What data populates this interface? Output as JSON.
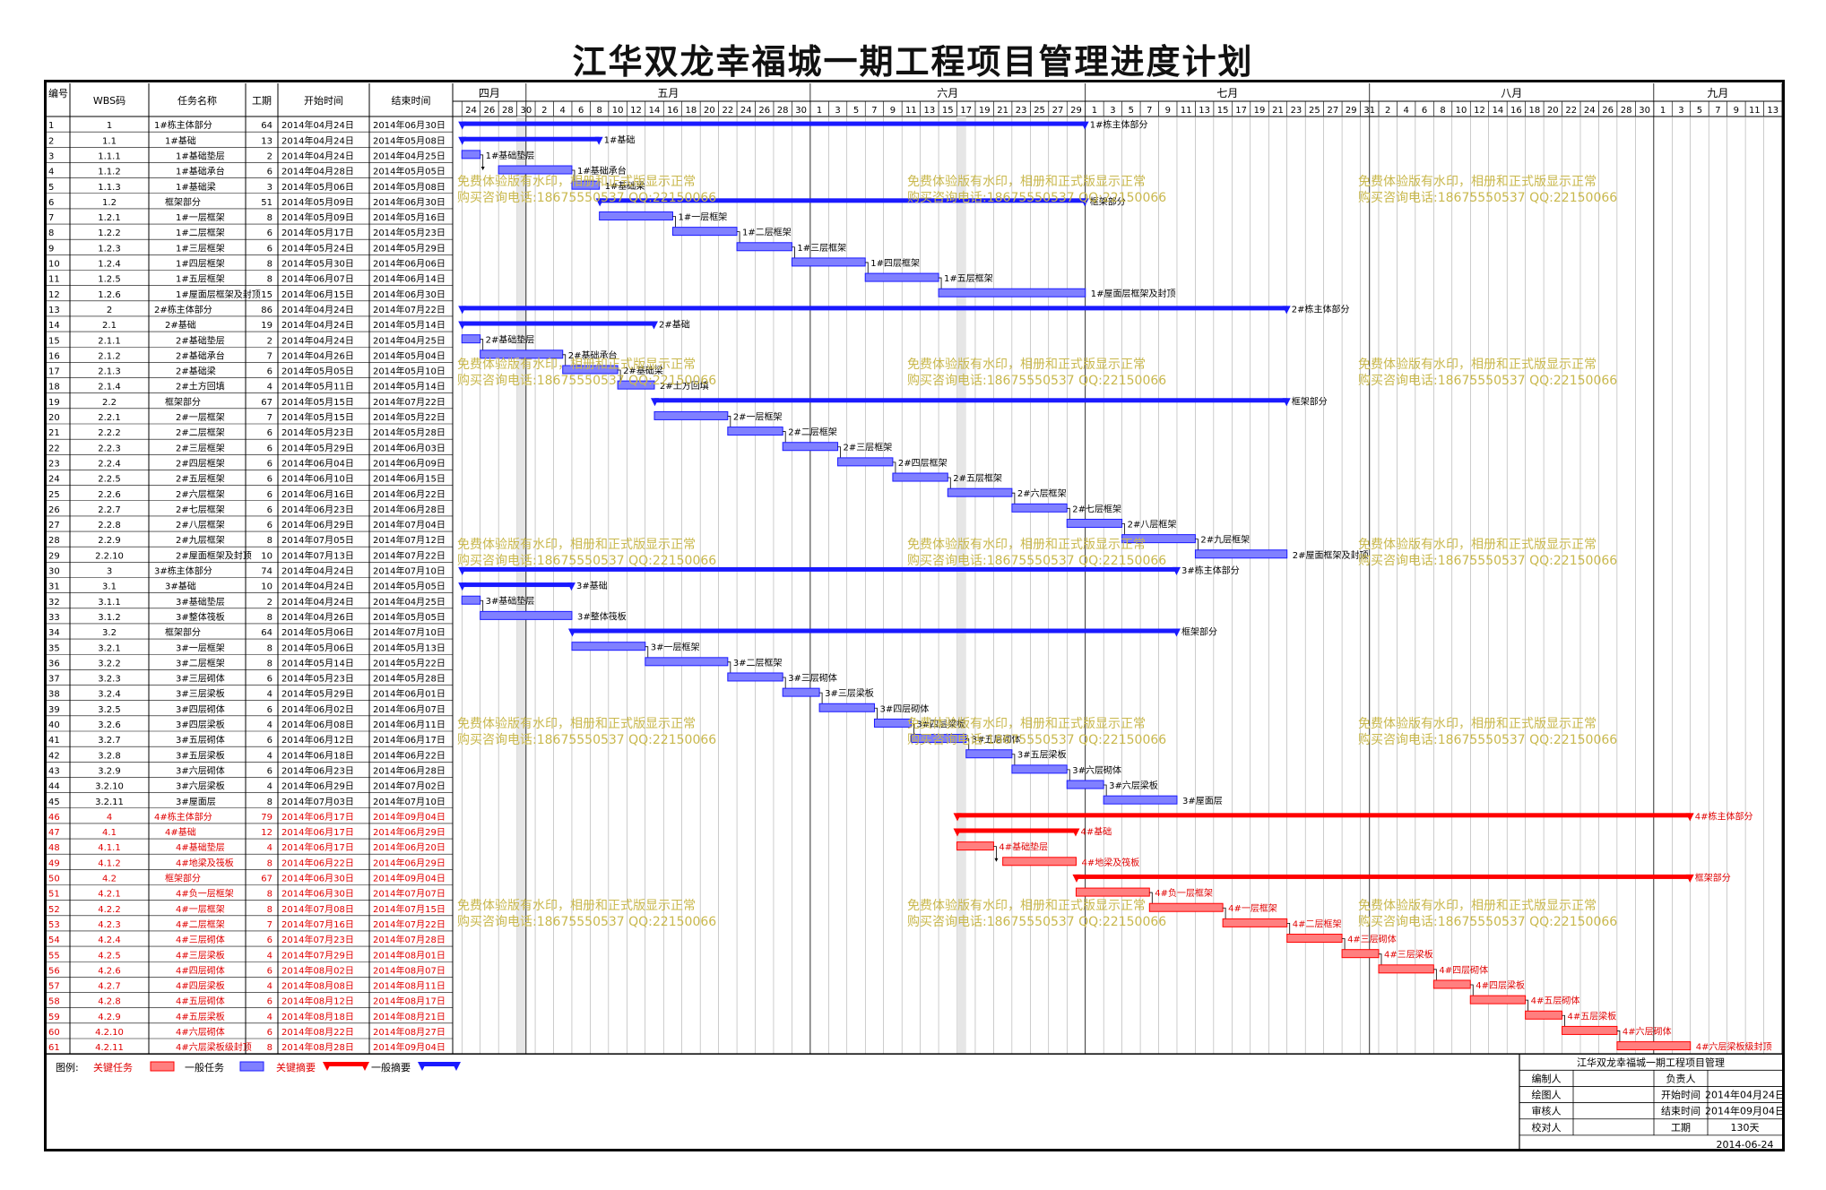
{
  "title": "江华双龙幸福城一期工程项目管理进度计划",
  "columns": [
    "编号",
    "WBS码",
    "任务名称",
    "工期",
    "开始时间",
    "结束时间"
  ],
  "months": [
    {
      "label": "四月",
      "start": "2014-04-23",
      "end": "2014-05-01"
    },
    {
      "label": "五月",
      "start": "2014-05-01",
      "end": "2014-06-01"
    },
    {
      "label": "六月",
      "start": "2014-06-01",
      "end": "2014-07-01"
    },
    {
      "label": "七月",
      "start": "2014-07-01",
      "end": "2014-08-01"
    },
    {
      "label": "八月",
      "start": "2014-08-01",
      "end": "2014-09-01"
    },
    {
      "label": "九月",
      "start": "2014-09-01",
      "end": "2014-09-15"
    }
  ],
  "timeline_start": "2014-04-23",
  "timeline_end": "2014-09-15",
  "day_labels": [
    "24",
    "26",
    "28",
    "30",
    "2",
    "4",
    "6",
    "8",
    "10",
    "12",
    "14",
    "16",
    "18",
    "20",
    "22",
    "24",
    "26",
    "28",
    "30",
    "1",
    "3",
    "5",
    "7",
    "9",
    "11",
    "13",
    "15",
    "17",
    "19",
    "21",
    "23",
    "25",
    "27",
    "29",
    "1",
    "3",
    "5",
    "7",
    "9",
    "11",
    "13",
    "15",
    "17",
    "19",
    "21",
    "23",
    "25",
    "27",
    "29",
    "31",
    "2",
    "4",
    "6",
    "8",
    "10",
    "12",
    "14",
    "16",
    "18",
    "20",
    "22",
    "24",
    "26",
    "28",
    "30",
    "1",
    "3",
    "5",
    "7",
    "9",
    "11",
    "13"
  ],
  "tasks": [
    {
      "id": "1",
      "wbs": "1",
      "name": "1#栋主体部分",
      "dur": "64",
      "start": "2014年04月24日",
      "end": "2014年06月30日",
      "type": "summary",
      "bar_label": "1#栋主体部分",
      "indent": 0
    },
    {
      "id": "2",
      "wbs": "1.1",
      "name": "1#基础",
      "dur": "13",
      "start": "2014年04月24日",
      "end": "2014年05月08日",
      "type": "summary",
      "bar_label": "1#基础",
      "indent": 1
    },
    {
      "id": "3",
      "wbs": "1.1.1",
      "name": "1#基础垫层",
      "dur": "2",
      "start": "2014年04月24日",
      "end": "2014年04月25日",
      "type": "task",
      "bar_label": "1#基础垫层",
      "indent": 2
    },
    {
      "id": "4",
      "wbs": "1.1.2",
      "name": "1#基础承台",
      "dur": "6",
      "start": "2014年04月28日",
      "end": "2014年05月05日",
      "type": "task",
      "bar_label": "1#基础承台",
      "indent": 2
    },
    {
      "id": "5",
      "wbs": "1.1.3",
      "name": "1#基础梁",
      "dur": "3",
      "start": "2014年05月06日",
      "end": "2014年05月08日",
      "type": "task",
      "bar_label": "1#基础梁",
      "indent": 2
    },
    {
      "id": "6",
      "wbs": "1.2",
      "name": "框架部分",
      "dur": "51",
      "start": "2014年05月09日",
      "end": "2014年06月30日",
      "type": "summary",
      "bar_label": "框架部分",
      "indent": 1
    },
    {
      "id": "7",
      "wbs": "1.2.1",
      "name": "1#一层框架",
      "dur": "8",
      "start": "2014年05月09日",
      "end": "2014年05月16日",
      "type": "task",
      "bar_label": "1#一层框架",
      "indent": 2
    },
    {
      "id": "8",
      "wbs": "1.2.2",
      "name": "1#二层框架",
      "dur": "6",
      "start": "2014年05月17日",
      "end": "2014年05月23日",
      "type": "task",
      "bar_label": "1#二层框架",
      "indent": 2
    },
    {
      "id": "9",
      "wbs": "1.2.3",
      "name": "1#三层框架",
      "dur": "6",
      "start": "2014年05月24日",
      "end": "2014年05月29日",
      "type": "task",
      "bar_label": "1#三层框架",
      "indent": 2
    },
    {
      "id": "10",
      "wbs": "1.2.4",
      "name": "1#四层框架",
      "dur": "8",
      "start": "2014年05月30日",
      "end": "2014年06月06日",
      "type": "task",
      "bar_label": "1#四层框架",
      "indent": 2
    },
    {
      "id": "11",
      "wbs": "1.2.5",
      "name": "1#五层框架",
      "dur": "8",
      "start": "2014年06月07日",
      "end": "2014年06月14日",
      "type": "task",
      "bar_label": "1#五层框架",
      "indent": 2
    },
    {
      "id": "12",
      "wbs": "1.2.6",
      "name": "1#屋面层框架及封顶",
      "dur": "15",
      "start": "2014年06月15日",
      "end": "2014年06月30日",
      "type": "task",
      "bar_label": "1#屋面层框架及封顶",
      "indent": 2
    },
    {
      "id": "13",
      "wbs": "2",
      "name": "2#栋主体部分",
      "dur": "86",
      "start": "2014年04月24日",
      "end": "2014年07月22日",
      "type": "summary",
      "bar_label": "2#栋主体部分",
      "indent": 0
    },
    {
      "id": "14",
      "wbs": "2.1",
      "name": "2#基础",
      "dur": "19",
      "start": "2014年04月24日",
      "end": "2014年05月14日",
      "type": "summary",
      "bar_label": "2#基础",
      "indent": 1
    },
    {
      "id": "15",
      "wbs": "2.1.1",
      "name": "2#基础垫层",
      "dur": "2",
      "start": "2014年04月24日",
      "end": "2014年04月25日",
      "type": "task",
      "bar_label": "2#基础垫层",
      "indent": 2
    },
    {
      "id": "16",
      "wbs": "2.1.2",
      "name": "2#基础承台",
      "dur": "7",
      "start": "2014年04月26日",
      "end": "2014年05月04日",
      "type": "task",
      "bar_label": "2#基础承台",
      "indent": 2
    },
    {
      "id": "17",
      "wbs": "2.1.3",
      "name": "2#基础梁",
      "dur": "6",
      "start": "2014年05月05日",
      "end": "2014年05月10日",
      "type": "task",
      "bar_label": "2#基础梁",
      "indent": 2
    },
    {
      "id": "18",
      "wbs": "2.1.4",
      "name": "2#土方回填",
      "dur": "4",
      "start": "2014年05月11日",
      "end": "2014年05月14日",
      "type": "task",
      "bar_label": "2#土方回填",
      "indent": 2
    },
    {
      "id": "19",
      "wbs": "2.2",
      "name": "框架部分",
      "dur": "67",
      "start": "2014年05月15日",
      "end": "2014年07月22日",
      "type": "summary",
      "bar_label": "框架部分",
      "indent": 1
    },
    {
      "id": "20",
      "wbs": "2.2.1",
      "name": "2#一层框架",
      "dur": "7",
      "start": "2014年05月15日",
      "end": "2014年05月22日",
      "type": "task",
      "bar_label": "2#一层框架",
      "indent": 2
    },
    {
      "id": "21",
      "wbs": "2.2.2",
      "name": "2#二层框架",
      "dur": "6",
      "start": "2014年05月23日",
      "end": "2014年05月28日",
      "type": "task",
      "bar_label": "2#二层框架",
      "indent": 2
    },
    {
      "id": "22",
      "wbs": "2.2.3",
      "name": "2#三层框架",
      "dur": "6",
      "start": "2014年05月29日",
      "end": "2014年06月03日",
      "type": "task",
      "bar_label": "2#三层框架",
      "indent": 2
    },
    {
      "id": "23",
      "wbs": "2.2.4",
      "name": "2#四层框架",
      "dur": "6",
      "start": "2014年06月04日",
      "end": "2014年06月09日",
      "type": "task",
      "bar_label": "2#四层框架",
      "indent": 2
    },
    {
      "id": "24",
      "wbs": "2.2.5",
      "name": "2#五层框架",
      "dur": "6",
      "start": "2014年06月10日",
      "end": "2014年06月15日",
      "type": "task",
      "bar_label": "2#五层框架",
      "indent": 2
    },
    {
      "id": "25",
      "wbs": "2.2.6",
      "name": "2#六层框架",
      "dur": "6",
      "start": "2014年06月16日",
      "end": "2014年06月22日",
      "type": "task",
      "bar_label": "2#六层框架",
      "indent": 2
    },
    {
      "id": "26",
      "wbs": "2.2.7",
      "name": "2#七层框架",
      "dur": "6",
      "start": "2014年06月23日",
      "end": "2014年06月28日",
      "type": "task",
      "bar_label": "2#七层框架",
      "indent": 2
    },
    {
      "id": "27",
      "wbs": "2.2.8",
      "name": "2#八层框架",
      "dur": "6",
      "start": "2014年06月29日",
      "end": "2014年07月04日",
      "type": "task",
      "bar_label": "2#八层框架",
      "indent": 2
    },
    {
      "id": "28",
      "wbs": "2.2.9",
      "name": "2#九层框架",
      "dur": "8",
      "start": "2014年07月05日",
      "end": "2014年07月12日",
      "type": "task",
      "bar_label": "2#九层框架",
      "indent": 2
    },
    {
      "id": "29",
      "wbs": "2.2.10",
      "name": "2#屋面框架及封顶",
      "dur": "10",
      "start": "2014年07月13日",
      "end": "2014年07月22日",
      "type": "task",
      "bar_label": "2#屋面框架及封顶",
      "indent": 2
    },
    {
      "id": "30",
      "wbs": "3",
      "name": "3#栋主体部分",
      "dur": "74",
      "start": "2014年04月24日",
      "end": "2014年07月10日",
      "type": "summary",
      "bar_label": "3#栋主体部分",
      "indent": 0
    },
    {
      "id": "31",
      "wbs": "3.1",
      "name": "3#基础",
      "dur": "10",
      "start": "2014年04月24日",
      "end": "2014年05月05日",
      "type": "summary",
      "bar_label": "3#基础",
      "indent": 1
    },
    {
      "id": "32",
      "wbs": "3.1.1",
      "name": "3#基础垫层",
      "dur": "2",
      "start": "2014年04月24日",
      "end": "2014年04月25日",
      "type": "task",
      "bar_label": "3#基础垫层",
      "indent": 2
    },
    {
      "id": "33",
      "wbs": "3.1.2",
      "name": "3#整体筏板",
      "dur": "8",
      "start": "2014年04月26日",
      "end": "2014年05月05日",
      "type": "task",
      "bar_label": "3#整体筏板",
      "indent": 2
    },
    {
      "id": "34",
      "wbs": "3.2",
      "name": "框架部分",
      "dur": "64",
      "start": "2014年05月06日",
      "end": "2014年07月10日",
      "type": "summary",
      "bar_label": "框架部分",
      "indent": 1
    },
    {
      "id": "35",
      "wbs": "3.2.1",
      "name": "3#一层框架",
      "dur": "8",
      "start": "2014年05月06日",
      "end": "2014年05月13日",
      "type": "task",
      "bar_label": "3#一层框架",
      "indent": 2
    },
    {
      "id": "36",
      "wbs": "3.2.2",
      "name": "3#二层框架",
      "dur": "8",
      "start": "2014年05月14日",
      "end": "2014年05月22日",
      "type": "task",
      "bar_label": "3#二层框架",
      "indent": 2
    },
    {
      "id": "37",
      "wbs": "3.2.3",
      "name": "3#三层砌体",
      "dur": "6",
      "start": "2014年05月23日",
      "end": "2014年05月28日",
      "type": "task",
      "bar_label": "3#三层砌体",
      "indent": 2
    },
    {
      "id": "38",
      "wbs": "3.2.4",
      "name": "3#三层梁板",
      "dur": "4",
      "start": "2014年05月29日",
      "end": "2014年06月01日",
      "type": "task",
      "bar_label": "3#三层梁板",
      "indent": 2
    },
    {
      "id": "39",
      "wbs": "3.2.5",
      "name": "3#四层砌体",
      "dur": "6",
      "start": "2014年06月02日",
      "end": "2014年06月07日",
      "type": "task",
      "bar_label": "3#四层砌体",
      "indent": 2
    },
    {
      "id": "40",
      "wbs": "3.2.6",
      "name": "3#四层梁板",
      "dur": "4",
      "start": "2014年06月08日",
      "end": "2014年06月11日",
      "type": "task",
      "bar_label": "3#四层梁板",
      "indent": 2
    },
    {
      "id": "41",
      "wbs": "3.2.7",
      "name": "3#五层砌体",
      "dur": "6",
      "start": "2014年06月12日",
      "end": "2014年06月17日",
      "type": "task",
      "bar_label": "3#五层砌体",
      "indent": 2
    },
    {
      "id": "42",
      "wbs": "3.2.8",
      "name": "3#五层梁板",
      "dur": "4",
      "start": "2014年06月18日",
      "end": "2014年06月22日",
      "type": "task",
      "bar_label": "3#五层梁板",
      "indent": 2
    },
    {
      "id": "43",
      "wbs": "3.2.9",
      "name": "3#六层砌体",
      "dur": "6",
      "start": "2014年06月23日",
      "end": "2014年06月28日",
      "type": "task",
      "bar_label": "3#六层砌体",
      "indent": 2
    },
    {
      "id": "44",
      "wbs": "3.2.10",
      "name": "3#六层梁板",
      "dur": "4",
      "start": "2014年06月29日",
      "end": "2014年07月02日",
      "type": "task",
      "bar_label": "3#六层梁板",
      "indent": 2
    },
    {
      "id": "45",
      "wbs": "3.2.11",
      "name": "3#屋面层",
      "dur": "8",
      "start": "2014年07月03日",
      "end": "2014年07月10日",
      "type": "task",
      "bar_label": "3#屋面层",
      "indent": 2
    },
    {
      "id": "46",
      "wbs": "4",
      "name": "4#栋主体部分",
      "dur": "79",
      "start": "2014年06月17日",
      "end": "2014年09月04日",
      "type": "csummary",
      "bar_label": "4#栋主体部分",
      "indent": 0
    },
    {
      "id": "47",
      "wbs": "4.1",
      "name": "4#基础",
      "dur": "12",
      "start": "2014年06月17日",
      "end": "2014年06月29日",
      "type": "csummary",
      "bar_label": "4#基础",
      "indent": 1
    },
    {
      "id": "48",
      "wbs": "4.1.1",
      "name": "4#基础垫层",
      "dur": "4",
      "start": "2014年06月17日",
      "end": "2014年06月20日",
      "type": "ctask",
      "bar_label": "4#基础垫层",
      "indent": 2
    },
    {
      "id": "49",
      "wbs": "4.1.2",
      "name": "4#地梁及筏板",
      "dur": "8",
      "start": "2014年06月22日",
      "end": "2014年06月29日",
      "type": "ctask",
      "bar_label": "4#地梁及筏板",
      "indent": 2
    },
    {
      "id": "50",
      "wbs": "4.2",
      "name": "框架部分",
      "dur": "67",
      "start": "2014年06月30日",
      "end": "2014年09月04日",
      "type": "csummary",
      "bar_label": "框架部分",
      "indent": 1
    },
    {
      "id": "51",
      "wbs": "4.2.1",
      "name": "4#负一层框架",
      "dur": "8",
      "start": "2014年06月30日",
      "end": "2014年07月07日",
      "type": "ctask",
      "bar_label": "4#负一层框架",
      "indent": 2
    },
    {
      "id": "52",
      "wbs": "4.2.2",
      "name": "4#一层框架",
      "dur": "8",
      "start": "2014年07月08日",
      "end": "2014年07月15日",
      "type": "ctask",
      "bar_label": "4#一层框架",
      "indent": 2
    },
    {
      "id": "53",
      "wbs": "4.2.3",
      "name": "4#二层框架",
      "dur": "7",
      "start": "2014年07月16日",
      "end": "2014年07月22日",
      "type": "ctask",
      "bar_label": "4#二层框架",
      "indent": 2
    },
    {
      "id": "54",
      "wbs": "4.2.4",
      "name": "4#三层砌体",
      "dur": "6",
      "start": "2014年07月23日",
      "end": "2014年07月28日",
      "type": "ctask",
      "bar_label": "4#三层砌体",
      "indent": 2
    },
    {
      "id": "55",
      "wbs": "4.2.5",
      "name": "4#三层梁板",
      "dur": "4",
      "start": "2014年07月29日",
      "end": "2014年08月01日",
      "type": "ctask",
      "bar_label": "4#三层梁板",
      "indent": 2
    },
    {
      "id": "56",
      "wbs": "4.2.6",
      "name": "4#四层砌体",
      "dur": "6",
      "start": "2014年08月02日",
      "end": "2014年08月07日",
      "type": "ctask",
      "bar_label": "4#四层砌体",
      "indent": 2
    },
    {
      "id": "57",
      "wbs": "4.2.7",
      "name": "4#四层梁板",
      "dur": "4",
      "start": "2014年08月08日",
      "end": "2014年08月11日",
      "type": "ctask",
      "bar_label": "4#四层梁板",
      "indent": 2
    },
    {
      "id": "58",
      "wbs": "4.2.8",
      "name": "4#五层砌体",
      "dur": "6",
      "start": "2014年08月12日",
      "end": "2014年08月17日",
      "type": "ctask",
      "bar_label": "4#五层砌体",
      "indent": 2
    },
    {
      "id": "59",
      "wbs": "4.2.9",
      "name": "4#五层梁板",
      "dur": "4",
      "start": "2014年08月18日",
      "end": "2014年08月21日",
      "type": "ctask",
      "bar_label": "4#五层梁板",
      "indent": 2
    },
    {
      "id": "60",
      "wbs": "4.2.10",
      "name": "4#六层砌体",
      "dur": "6",
      "start": "2014年08月22日",
      "end": "2014年08月27日",
      "type": "ctask",
      "bar_label": "4#六层砌体",
      "indent": 2
    },
    {
      "id": "61",
      "wbs": "4.2.11",
      "name": "4#六层梁板级封顶",
      "dur": "8",
      "start": "2014年08月28日",
      "end": "2014年09月04日",
      "type": "ctask",
      "bar_label": "4#六层梁板级封顶",
      "indent": 2
    }
  ],
  "watermark": {
    "line1": "免费体验版有水印，相册和正式版显示正常",
    "line2": "购买咨询电话:18675550537 QQ:22150066"
  },
  "legend": {
    "label": "图例:",
    "items": [
      "关键任务",
      "一般任务",
      "关键摘要",
      "一般摘要"
    ]
  },
  "title_block": {
    "title": "江华双龙幸福城一期工程项目管理",
    "editor_label": "编制人",
    "owner_label": "负责人",
    "owner_value": "",
    "drawer_label": "绘图人",
    "start_label": "开始时间",
    "start_value": "2014年04月24日",
    "reviewer_label": "审核人",
    "end_label": "结束时间",
    "end_value": "2014年09月04日",
    "checker_label": "校对人",
    "duration_label": "工期",
    "duration_value": "130天",
    "date": "2014-06-24"
  },
  "colors": {
    "blue": "#1a1aff",
    "blue_task": "#8080ff",
    "red": "#ff0000",
    "red_task": "#ff7f7f",
    "watermark": "#c9b84d"
  }
}
